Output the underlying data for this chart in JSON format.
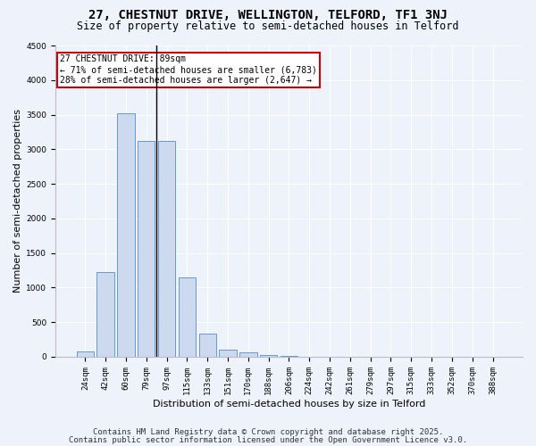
{
  "title": "27, CHESTNUT DRIVE, WELLINGTON, TELFORD, TF1 3NJ",
  "subtitle": "Size of property relative to semi-detached houses in Telford",
  "xlabel": "Distribution of semi-detached houses by size in Telford",
  "ylabel": "Number of semi-detached properties",
  "annotation_title": "27 CHESTNUT DRIVE: 89sqm",
  "annotation_line1": "← 71% of semi-detached houses are smaller (6,783)",
  "annotation_line2": "28% of semi-detached houses are larger (2,647) →",
  "property_size": 89,
  "bar_color": "#ccd9ee",
  "bar_edge_color": "#6699cc",
  "vline_color": "black",
  "annotation_box_color": "#cc0000",
  "categories": [
    "24sqm",
    "42sqm",
    "60sqm",
    "79sqm",
    "97sqm",
    "115sqm",
    "133sqm",
    "151sqm",
    "170sqm",
    "188sqm",
    "206sqm",
    "224sqm",
    "242sqm",
    "261sqm",
    "279sqm",
    "297sqm",
    "315sqm",
    "333sqm",
    "352sqm",
    "370sqm",
    "388sqm"
  ],
  "values": [
    75,
    1220,
    3520,
    3120,
    3120,
    1150,
    330,
    100,
    65,
    30,
    10,
    5,
    3,
    2,
    1,
    1,
    1,
    1,
    1,
    1,
    1
  ],
  "ylim": [
    0,
    4500
  ],
  "yticks": [
    0,
    500,
    1000,
    1500,
    2000,
    2500,
    3000,
    3500,
    4000,
    4500
  ],
  "footnote1": "Contains HM Land Registry data © Crown copyright and database right 2025.",
  "footnote2": "Contains public sector information licensed under the Open Government Licence v3.0.",
  "background_color": "#eef2fb",
  "plot_background_color": "#eef2fb",
  "title_fontsize": 10,
  "subtitle_fontsize": 8.5,
  "axis_label_fontsize": 8,
  "tick_fontsize": 6.5,
  "footnote_fontsize": 6.5,
  "vline_x_index": 3.5
}
